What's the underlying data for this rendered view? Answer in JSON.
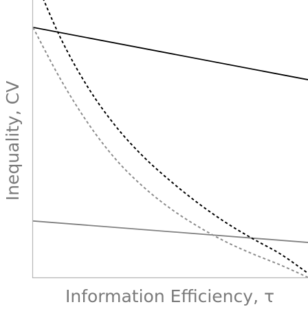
{
  "chart_data": {
    "type": "line",
    "xlabel": "Information Efficiency, τ",
    "ylabel": "Inequality, CV",
    "xlim": [
      0,
      1
    ],
    "ylim": [
      0,
      1
    ],
    "grid": false,
    "legend": "none",
    "series": [
      {
        "style": "solid",
        "color": "#000000",
        "x": [
          0,
          1
        ],
        "y": [
          0.908,
          0.718
        ]
      },
      {
        "style": "solid",
        "color": "#808080",
        "x": [
          0,
          1
        ],
        "y": [
          0.205,
          0.127
        ]
      },
      {
        "style": "dashed",
        "color": "#000000",
        "x": [
          0,
          0.1,
          0.2,
          0.3,
          0.4,
          0.5,
          0.6,
          0.7,
          0.8,
          0.9,
          1.0
        ],
        "y": [
          1.1,
          0.87,
          0.69,
          0.55,
          0.44,
          0.35,
          0.27,
          0.2,
          0.14,
          0.085,
          0.015
        ]
      },
      {
        "style": "dashed",
        "color": "#8c8c8c",
        "x": [
          0,
          0.1,
          0.2,
          0.3,
          0.4,
          0.5,
          0.6,
          0.7,
          0.8,
          0.9,
          1.0
        ],
        "y": [
          0.908,
          0.72,
          0.56,
          0.43,
          0.33,
          0.25,
          0.185,
          0.13,
          0.085,
          0.045,
          0.0
        ]
      }
    ]
  }
}
